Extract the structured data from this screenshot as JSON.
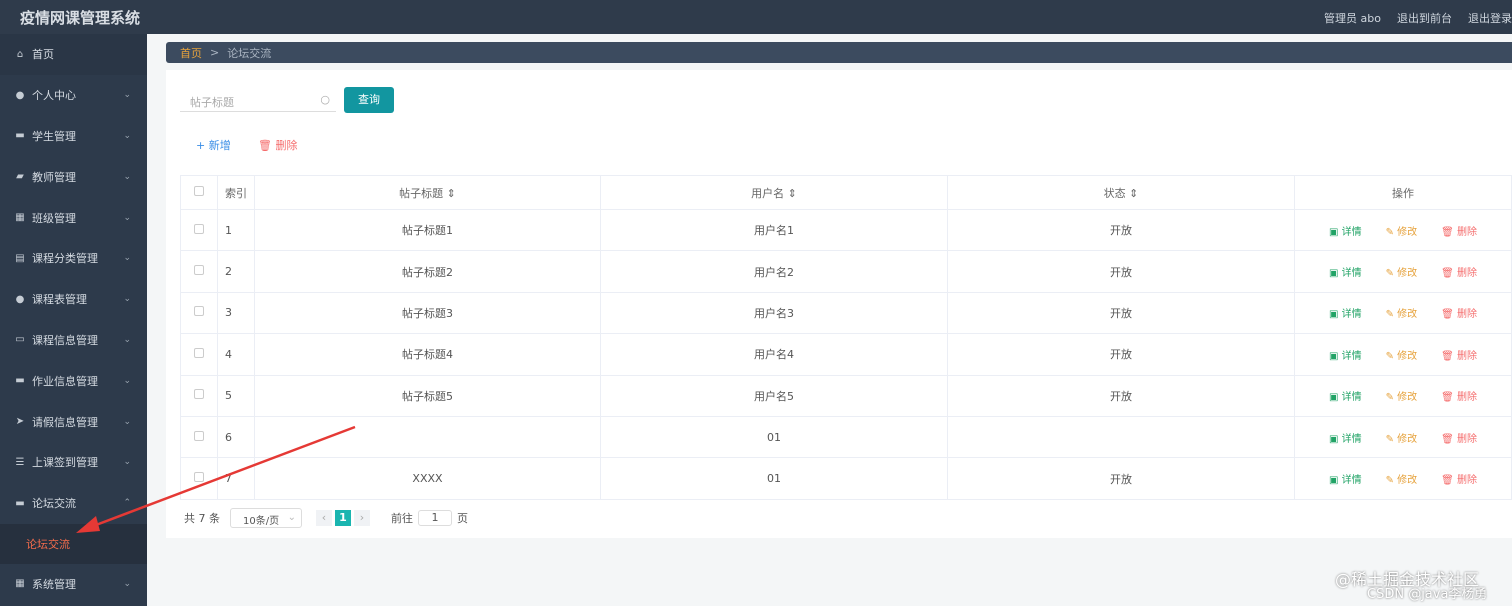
{
  "header": {
    "title": "疫情网课管理系统",
    "user": "管理员 abo",
    "front": "退出到前台",
    "logout": "退出登录"
  },
  "sidebar": {
    "items": [
      {
        "label": "首页",
        "icon": "home-icon",
        "glyph": "⌂",
        "chevron": ""
      },
      {
        "label": "个人中心",
        "icon": "user-icon",
        "glyph": "●",
        "chevron": "⌄"
      },
      {
        "label": "学生管理",
        "icon": "briefcase-icon",
        "glyph": "▬",
        "chevron": "⌄"
      },
      {
        "label": "教师管理",
        "icon": "chat-icon",
        "glyph": "▰",
        "chevron": "⌄"
      },
      {
        "label": "班级管理",
        "icon": "grid-icon",
        "glyph": "▦",
        "chevron": "⌄"
      },
      {
        "label": "课程分类管理",
        "icon": "clipboard-icon",
        "glyph": "▤",
        "chevron": "⌄"
      },
      {
        "label": "课程表管理",
        "icon": "bulb-icon",
        "glyph": "●",
        "chevron": "⌄"
      },
      {
        "label": "课程信息管理",
        "icon": "card-icon",
        "glyph": "▭",
        "chevron": "⌄"
      },
      {
        "label": "作业信息管理",
        "icon": "ticket-icon",
        "glyph": "▬",
        "chevron": "⌄"
      },
      {
        "label": "请假信息管理",
        "icon": "send-icon",
        "glyph": "➤",
        "chevron": "⌄"
      },
      {
        "label": "上课签到管理",
        "icon": "sliders-icon",
        "glyph": "☰",
        "chevron": "⌄"
      },
      {
        "label": "论坛交流",
        "icon": "forum-icon",
        "glyph": "▬",
        "chevron": "⌃"
      }
    ],
    "sub": "论坛交流",
    "last": {
      "label": "系统管理",
      "icon": "apps-icon",
      "glyph": "▦",
      "chevron": "⌄"
    }
  },
  "breadcrumb": {
    "home": "首页",
    "sep": ">",
    "current": "论坛交流"
  },
  "search": {
    "placeholder": "帖子标题",
    "button": "查询"
  },
  "actions": {
    "add": "+ 新增",
    "delete": "🗑 删除"
  },
  "table": {
    "headers": [
      "索引",
      "帖子标题 ⇕",
      "用户名 ⇕",
      "状态 ⇕",
      "操作"
    ],
    "rows": [
      [
        "1",
        "帖子标题1",
        "用户名1",
        "开放"
      ],
      [
        "2",
        "帖子标题2",
        "用户名2",
        "开放"
      ],
      [
        "3",
        "帖子标题3",
        "用户名3",
        "开放"
      ],
      [
        "4",
        "帖子标题4",
        "用户名4",
        "开放"
      ],
      [
        "5",
        "帖子标题5",
        "用户名5",
        "开放"
      ],
      [
        "6",
        "",
        "01",
        ""
      ],
      [
        "7",
        "XXXX",
        "01",
        "开放"
      ]
    ],
    "ops": {
      "detail": "▣ 详情",
      "edit": "✎ 修改",
      "delete": "🗑 删除"
    }
  },
  "pagination": {
    "total": "共 7 条",
    "page_size": "10条/页",
    "current": "1",
    "goto": "前往",
    "goto_value": "1",
    "page_unit": "页"
  },
  "watermark": {
    "line1": "@稀土掘金技术社区",
    "line2": "CSDN @java李杨勇"
  },
  "annotation_color": "#e53935"
}
